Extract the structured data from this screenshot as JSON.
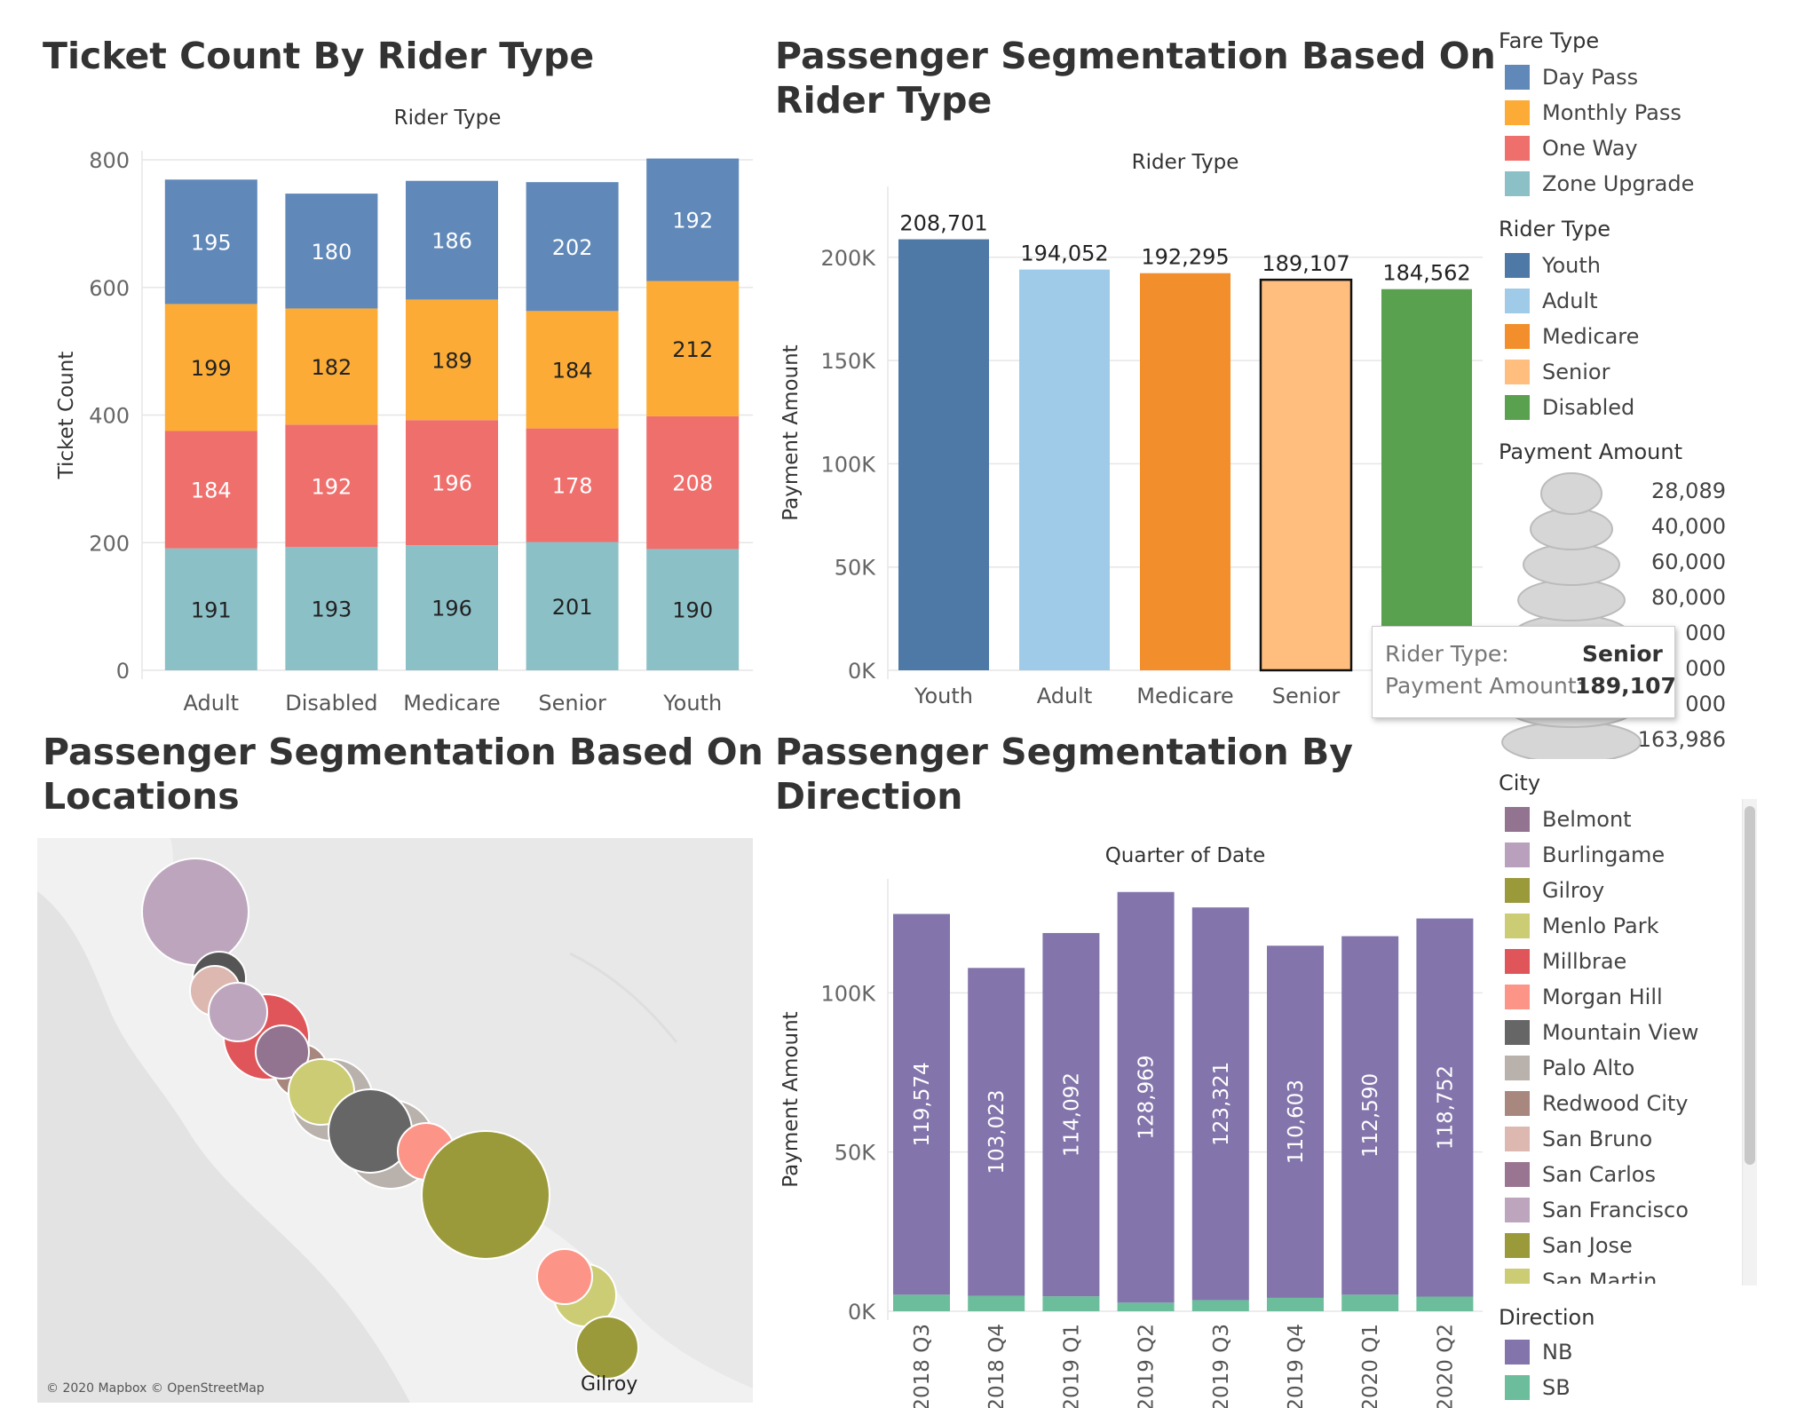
{
  "charts_text": {
    "c1_title": "Ticket Count By Rider Type",
    "c1_header": "Rider Type",
    "c2_title_1": "Passenger Segmentation Based On",
    "c2_title_2": "Rider Type",
    "c2_header": "Rider Type",
    "c3_title_1": "Passenger Segmentation Based On",
    "c3_title_2": "Locations",
    "c4_title_1": "Passenger Segmentation By",
    "c4_title_2": "Direction",
    "c4_header": "Quarter of Date",
    "map_credit": "© 2020 Mapbox © OpenStreetMap",
    "map_label": "Gilroy"
  },
  "chart_data": [
    {
      "id": "ticket-count",
      "type": "bar",
      "stacked": true,
      "categories": [
        "Adult",
        "Disabled",
        "Medicare",
        "Senior",
        "Youth"
      ],
      "ylabel": "Ticket Count",
      "ylim": [
        0,
        800
      ],
      "yticks": [
        "0",
        "200",
        "400",
        "600",
        "800"
      ],
      "series": [
        {
          "name": "Zone Upgrade",
          "color": "#8cc0c7",
          "label_color": "#222",
          "values": [
            191,
            193,
            196,
            201,
            190
          ]
        },
        {
          "name": "One Way",
          "color": "#ef6f6c",
          "label_color": "#fff",
          "values": [
            184,
            192,
            196,
            178,
            208
          ]
        },
        {
          "name": "Monthly Pass",
          "color": "#fcac36",
          "label_color": "#222",
          "values": [
            199,
            182,
            189,
            184,
            212
          ]
        },
        {
          "name": "Day Pass",
          "color": "#6088b8",
          "label_color": "#fff",
          "values": [
            195,
            180,
            186,
            202,
            192
          ]
        }
      ]
    },
    {
      "id": "payment-by-rider",
      "type": "bar",
      "categories": [
        "Youth",
        "Adult",
        "Medicare",
        "Senior",
        "Disabled"
      ],
      "values": [
        208701,
        194052,
        192295,
        189107,
        184562
      ],
      "labels": [
        "208,701",
        "194,052",
        "192,295",
        "189,107",
        "184,562"
      ],
      "colors": [
        "#4e79a7",
        "#a0cbe8",
        "#f28e2b",
        "#ffbe7d",
        "#59a14f"
      ],
      "highlight": "Senior",
      "ylabel": "Payment Amount",
      "ylim": [
        0,
        230000
      ],
      "ytick_values": [
        0,
        50000,
        100000,
        150000,
        200000
      ],
      "ytick_labels": [
        "0K",
        "50K",
        "100K",
        "150K",
        "200K"
      ]
    },
    {
      "id": "payment-by-quarter",
      "type": "bar",
      "stacked": true,
      "categories": [
        "2018 Q3",
        "2018 Q4",
        "2019 Q1",
        "2019 Q2",
        "2019 Q3",
        "2019 Q4",
        "2020 Q1",
        "2020 Q2"
      ],
      "ylabel": "Payment Amount",
      "ylim": [
        0,
        133000
      ],
      "ytick_values": [
        0,
        50000,
        100000
      ],
      "ytick_labels": [
        "0K",
        "50K",
        "100K"
      ],
      "series": [
        {
          "name": "SB",
          "color": "#6cbd9b",
          "values": [
            5200,
            4800,
            4700,
            2700,
            3500,
            4200,
            5200,
            4600
          ]
        },
        {
          "name": "NB",
          "color": "#8375ab",
          "values": [
            119574,
            103023,
            114092,
            128969,
            123321,
            110603,
            112590,
            118752
          ],
          "labels": [
            "119,574",
            "103,023",
            "114,092",
            "128,969",
            "123,321",
            "110,603",
            "112,590",
            "118,752"
          ]
        }
      ]
    }
  ],
  "legends": {
    "fare_title": "Fare Type",
    "fare": [
      {
        "label": "Day Pass",
        "color": "#6088b8"
      },
      {
        "label": "Monthly Pass",
        "color": "#fcac36"
      },
      {
        "label": "One Way",
        "color": "#ef6f6c"
      },
      {
        "label": "Zone Upgrade",
        "color": "#8cc0c7"
      }
    ],
    "rider_title": "Rider Type",
    "rider": [
      {
        "label": "Youth",
        "color": "#4e79a7"
      },
      {
        "label": "Adult",
        "color": "#a0cbe8"
      },
      {
        "label": "Medicare",
        "color": "#f28e2b"
      },
      {
        "label": "Senior",
        "color": "#ffbe7d"
      },
      {
        "label": "Disabled",
        "color": "#59a14f"
      }
    ],
    "payment_title": "Payment Amount",
    "payment_labels": [
      "28,089",
      "40,000",
      "60,000",
      "80,000",
      "000",
      "000",
      "000",
      "163,986"
    ],
    "city_title": "City",
    "city": [
      {
        "label": "Belmont",
        "color": "#937490"
      },
      {
        "label": "Burlingame",
        "color": "#b9a0bc"
      },
      {
        "label": "Gilroy",
        "color": "#9b9a3b"
      },
      {
        "label": "Menlo Park",
        "color": "#cccc74"
      },
      {
        "label": "Millbrae",
        "color": "#e05559"
      },
      {
        "label": "Morgan Hill",
        "color": "#fc9587"
      },
      {
        "label": "Mountain View",
        "color": "#666666"
      },
      {
        "label": "Palo Alto",
        "color": "#b9b1ab"
      },
      {
        "label": "Redwood City",
        "color": "#a8877f"
      },
      {
        "label": "San Bruno",
        "color": "#dcb8b0"
      },
      {
        "label": "San Carlos",
        "color": "#9a7591"
      },
      {
        "label": "San Francisco",
        "color": "#bda6bd"
      },
      {
        "label": "San Jose",
        "color": "#9b9a3b"
      },
      {
        "label": "San Martin",
        "color": "#cccc74"
      }
    ],
    "direction_title": "Direction",
    "direction": [
      {
        "label": "NB",
        "color": "#8375ab"
      },
      {
        "label": "SB",
        "color": "#6cbd9b"
      }
    ]
  },
  "tooltip": {
    "k1": "Rider Type:",
    "v1": "Senior",
    "k2": "Payment Amount:",
    "v2": "189,107"
  }
}
